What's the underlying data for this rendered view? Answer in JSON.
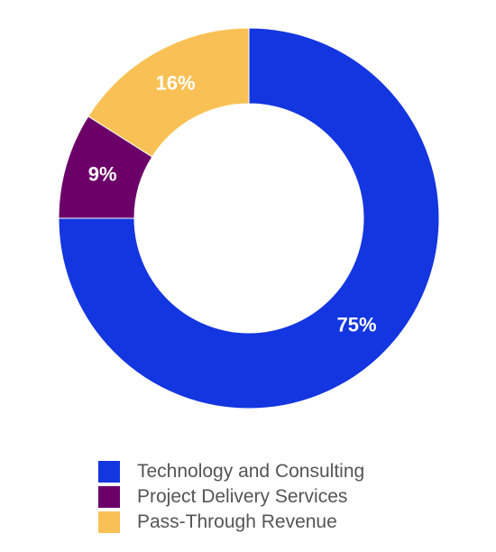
{
  "chart_data": {
    "type": "pie",
    "subtype": "donut",
    "slices": [
      {
        "name": "Technology and Consulting",
        "value": 75,
        "label": "75%",
        "color": "#1336E0"
      },
      {
        "name": "Project Delivery Services",
        "value": 9,
        "label": "9%",
        "color": "#6C0069"
      },
      {
        "name": "Pass-Through Revenue",
        "value": 16,
        "label": "16%",
        "color": "#F9C155"
      }
    ],
    "start_angle": "top",
    "direction": "clockwise",
    "legend_placement": "bottom",
    "legend": [
      "Technology and Consulting",
      "Project Delivery Services",
      "Pass-Through Revenue"
    ]
  }
}
